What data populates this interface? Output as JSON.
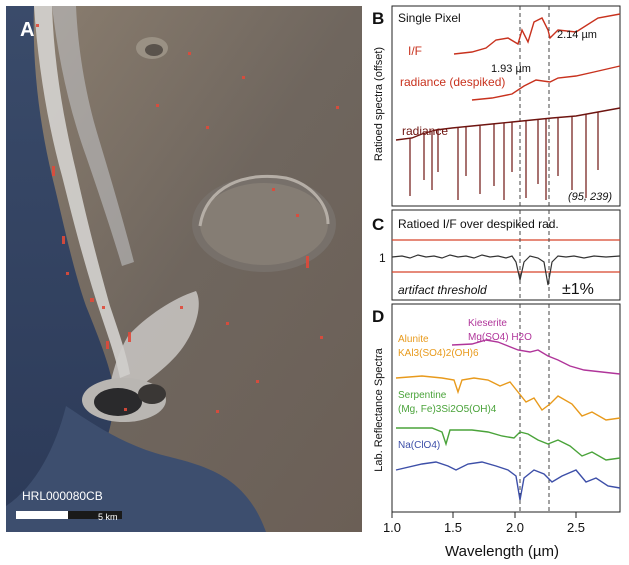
{
  "panel_a": {
    "letter": "A",
    "image_id": "HRL000080CB",
    "scale_label": "5 km"
  },
  "panel_b": {
    "letter": "B",
    "title": "Single Pixel",
    "ylabel": "Ratioed spectra (offset)",
    "trace_labels": [
      "I/F",
      "radiance (despiked)",
      "radiance"
    ],
    "band_labels": [
      "1.93 µm",
      "2.14 µm"
    ],
    "pixel": "(95, 239)"
  },
  "panel_c": {
    "letter": "C",
    "title": "Ratioed I/F over despiked rad.",
    "unity_tick": "1",
    "threshold_label": "artifact threshold",
    "threshold_value": "±1%"
  },
  "panel_d": {
    "letter": "D",
    "ylabel": "Lab. Reflectance Spectra",
    "minerals": [
      {
        "name": "Kieserite",
        "formula": "Mg(SO4) H2O",
        "color": "#b0359a"
      },
      {
        "name": "Alunite",
        "formula": "KAl3(SO4)2(OH)6",
        "color": "#e89a1c"
      },
      {
        "name": "Serpentine",
        "formula": "(Mg, Fe)3Si2O5(OH)4",
        "color": "#4aa33a"
      },
      {
        "name": "Na(ClO4)",
        "formula": "",
        "color": "#3d4fa8"
      }
    ]
  },
  "x_axis": {
    "label": "Wavelength (µm)",
    "ticks": [
      "1.0",
      "1.5",
      "2.0",
      "2.5"
    ]
  },
  "colors": {
    "trace_red": "#c8321e",
    "trace_dark": "#6e1410",
    "threshold": "#d8452a"
  }
}
